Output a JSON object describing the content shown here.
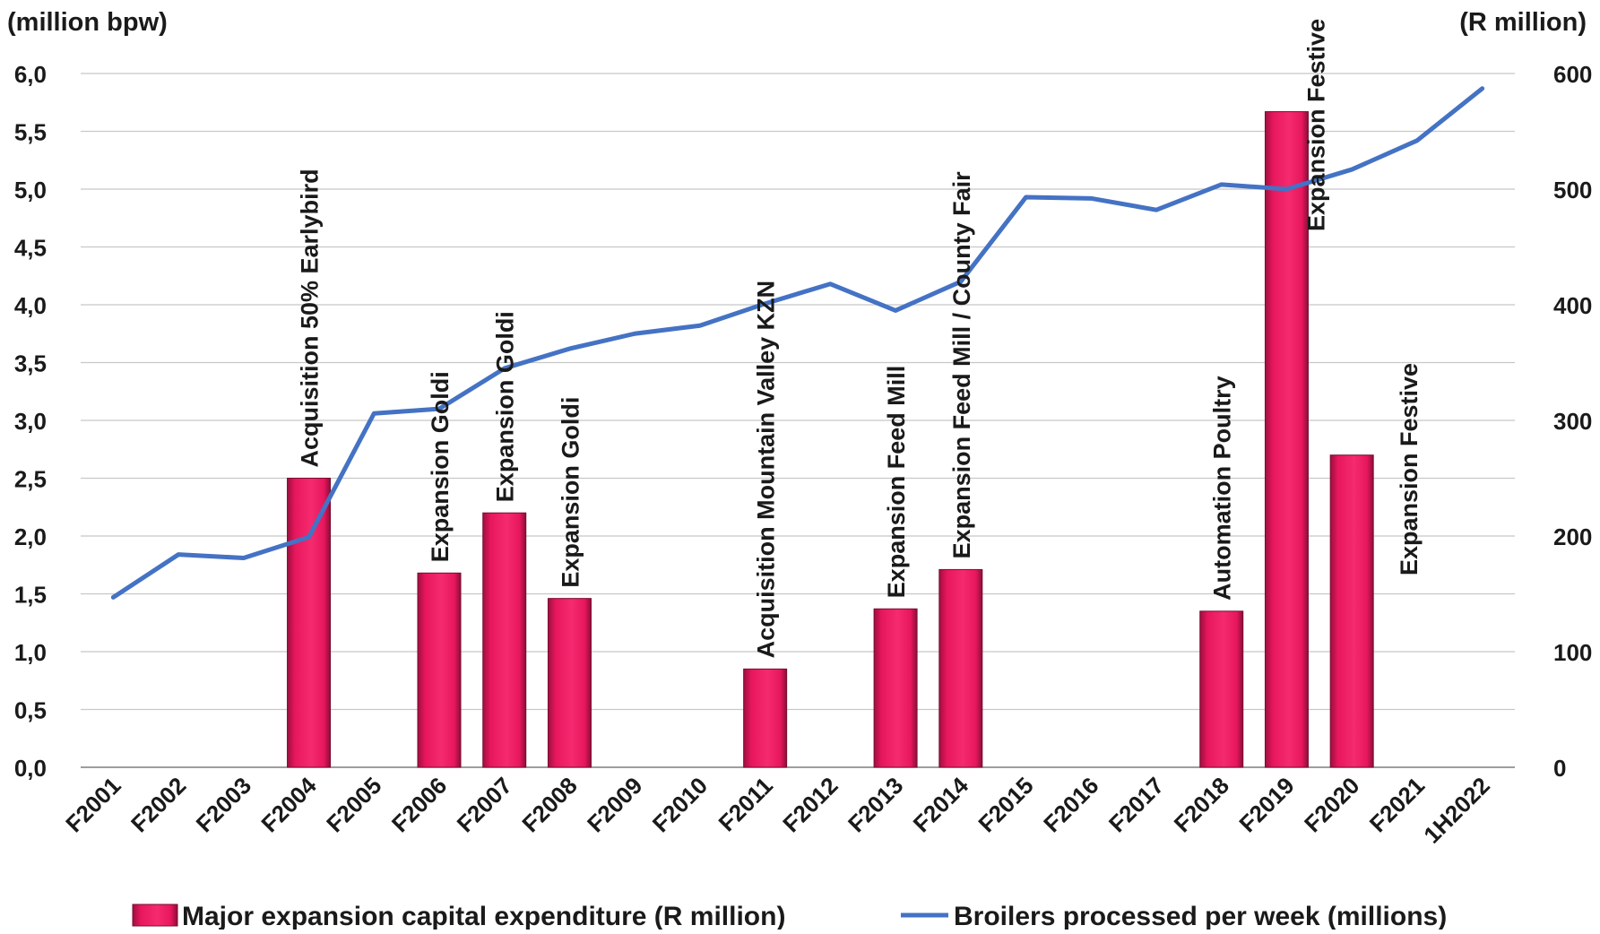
{
  "chart_data": {
    "type": "bar",
    "left_axis_unit": "(million bpw)",
    "right_axis_unit": "(R million)",
    "categories": [
      "F2001",
      "F2002",
      "F2003",
      "F2004",
      "F2005",
      "F2006",
      "F2007",
      "F2008",
      "F2009",
      "F2010",
      "F2011",
      "F2012",
      "F2013",
      "F2014",
      "F2015",
      "F2016",
      "F2017",
      "F2018",
      "F2019",
      "F2020",
      "F2021",
      "1H2022"
    ],
    "left_ticks": [
      "0,0",
      "0,5",
      "1,0",
      "1,5",
      "2,0",
      "2,5",
      "3,0",
      "3,5",
      "4,0",
      "4,5",
      "5,0",
      "5,5",
      "6,0"
    ],
    "right_ticks": [
      "0",
      "100",
      "200",
      "300",
      "400",
      "500",
      "600"
    ],
    "left_ylim": [
      0,
      6
    ],
    "right_ylim": [
      0,
      600
    ],
    "grid": true,
    "legend_position": "bottom",
    "bar_color": "#e8175d",
    "line_color": "#4472c4",
    "series": [
      {
        "name": "Major expansion capital expenditure (R million)",
        "type": "bar",
        "axis": "right",
        "values": [
          null,
          null,
          null,
          250,
          null,
          168,
          220,
          146,
          null,
          null,
          85,
          null,
          137,
          171,
          null,
          null,
          null,
          135,
          567,
          270,
          null,
          null
        ],
        "labels": [
          "",
          "",
          "",
          "Acquisition 50% Earlybird",
          "",
          "Expansion Goldi",
          "Expansion Goldi",
          "Expansion Goldi",
          "",
          "",
          "Acquisition Mountain Valley KZN",
          "",
          "Expansion Feed Mill",
          "Expansion Feed Mill / County Fair",
          "",
          "",
          "",
          "Automation Poultry",
          "Expansion Festive",
          "Expansion Festive",
          "",
          ""
        ]
      },
      {
        "name": "Broilers processed per week (millions)",
        "type": "line",
        "axis": "left",
        "values": [
          1.47,
          1.84,
          1.81,
          1.99,
          3.06,
          3.1,
          3.45,
          3.62,
          3.75,
          3.82,
          4.01,
          4.18,
          3.95,
          4.2,
          4.93,
          4.92,
          4.82,
          5.04,
          5.0,
          5.17,
          5.42,
          5.87
        ]
      }
    ]
  }
}
